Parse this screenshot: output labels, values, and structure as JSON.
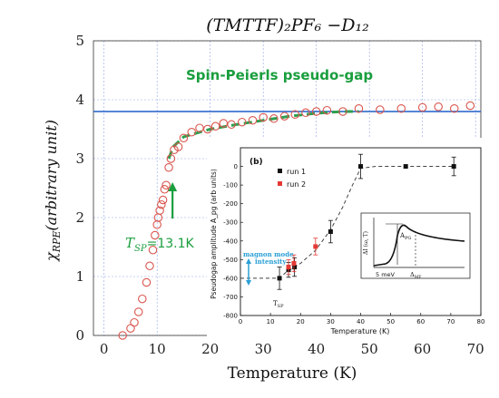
{
  "chart_data": [
    {
      "type": "scatter",
      "title": "(TMTTF)₂PF₆ −D₁₂",
      "xlabel": "Temperature (K)",
      "ylabel": "χRPE(arbitrary unit)",
      "ylabel_main": "χ",
      "ylabel_sub": "RPE",
      "ylabel_rest": "(arbitrary unit)",
      "xlim": [
        -2,
        71
      ],
      "ylim": [
        0,
        5
      ],
      "x_ticks": [
        0,
        10,
        20,
        30,
        40,
        50,
        60,
        70
      ],
      "y_ticks": [
        0,
        1,
        2,
        3,
        4,
        5
      ],
      "grid": true,
      "marker_color": "#d9544d",
      "points": [
        [
          3.5,
          0.0
        ],
        [
          5.0,
          0.12
        ],
        [
          5.7,
          0.22
        ],
        [
          6.5,
          0.4
        ],
        [
          7.2,
          0.62
        ],
        [
          8.0,
          0.9
        ],
        [
          8.6,
          1.18
        ],
        [
          9.2,
          1.45
        ],
        [
          9.6,
          1.7
        ],
        [
          10.0,
          1.88
        ],
        [
          10.2,
          2.0
        ],
        [
          10.5,
          2.12
        ],
        [
          10.8,
          2.22
        ],
        [
          11.1,
          2.3
        ],
        [
          11.4,
          2.48
        ],
        [
          11.7,
          2.55
        ],
        [
          12.2,
          2.85
        ],
        [
          12.6,
          3.0
        ],
        [
          13.2,
          3.15
        ],
        [
          14.0,
          3.2
        ],
        [
          15.0,
          3.35
        ],
        [
          16.5,
          3.45
        ],
        [
          18.0,
          3.52
        ],
        [
          19.5,
          3.5
        ],
        [
          21.0,
          3.55
        ],
        [
          22.5,
          3.6
        ],
        [
          24.0,
          3.58
        ],
        [
          26.0,
          3.62
        ],
        [
          28.0,
          3.65
        ],
        [
          30.0,
          3.7
        ],
        [
          32.0,
          3.68
        ],
        [
          34.0,
          3.72
        ],
        [
          36.0,
          3.75
        ],
        [
          38.0,
          3.78
        ],
        [
          40.0,
          3.8
        ],
        [
          42.0,
          3.82
        ],
        [
          45.0,
          3.8
        ],
        [
          48.0,
          3.85
        ],
        [
          52.0,
          3.83
        ],
        [
          56.0,
          3.85
        ],
        [
          60.0,
          3.87
        ],
        [
          63.0,
          3.88
        ],
        [
          66.0,
          3.85
        ],
        [
          69.0,
          3.9
        ]
      ],
      "hline": {
        "y": 3.8,
        "color": "#1f5fc9"
      },
      "dashed_fit": {
        "color": "#2e9e4f",
        "points": [
          [
            12.2,
            3.0
          ],
          [
            13,
            3.2
          ],
          [
            15,
            3.37
          ],
          [
            20,
            3.5
          ],
          [
            25,
            3.58
          ],
          [
            30,
            3.65
          ],
          [
            35,
            3.72
          ],
          [
            40,
            3.77
          ],
          [
            45,
            3.8
          ],
          [
            48,
            3.8
          ]
        ]
      },
      "annotations": {
        "pseudogap_label": "Spin-Peierls pseudo-gap",
        "tsp_symbol": "T",
        "tsp_sub": "SP",
        "tsp_value": "=13.1K",
        "annotation_color": "#1a9e3e",
        "arrow_at": [
          12.9,
          2.6
        ]
      }
    },
    {
      "type": "scatter",
      "panel_label": "(b)",
      "xlabel": "Temperature (K)",
      "ylabel": "Pseudogap amplitude A_pg (arb units)",
      "xlim": [
        0,
        80
      ],
      "ylim": [
        -800,
        100
      ],
      "x_ticks": [
        0,
        10,
        20,
        30,
        40,
        50,
        60,
        70,
        80
      ],
      "y_ticks": [
        0,
        -100,
        -200,
        -300,
        -400,
        -500,
        -600,
        -700,
        -800
      ],
      "legend": [
        "run 1",
        "run 2"
      ],
      "series": [
        {
          "name": "run 1",
          "color": "#111111",
          "points": [
            [
              13,
              -600
            ],
            [
              16,
              -555
            ],
            [
              18,
              -540
            ],
            [
              30,
              -350
            ],
            [
              40,
              0
            ],
            [
              55,
              0
            ],
            [
              71,
              0
            ]
          ],
          "errors": [
            60,
            40,
            50,
            60,
            65,
            0,
            50
          ]
        },
        {
          "name": "run 2",
          "color": "#e53935",
          "points": [
            [
              16,
              -540
            ],
            [
              17.8,
              -520
            ],
            [
              25,
              -430
            ]
          ],
          "errors": [
            40,
            45,
            45
          ]
        }
      ],
      "dashed_curve": [
        [
          0,
          -600
        ],
        [
          13,
          -600
        ],
        [
          15,
          -570
        ],
        [
          20,
          -520
        ],
        [
          25,
          -450
        ],
        [
          30,
          -340
        ],
        [
          34,
          -220
        ],
        [
          37,
          -110
        ],
        [
          40,
          -10
        ],
        [
          45,
          0
        ],
        [
          71,
          0
        ]
      ],
      "annotations": {
        "magnon_line1": "magnon mode",
        "magnon_line2": "intensity",
        "tsp_label": "T",
        "tsp_sub": "SP",
        "magnon_color": "#2a9fd6"
      },
      "inset": {
        "ylabel": "ΔI (ω, T)",
        "apg_label": "A",
        "apg_sub": "PG",
        "x_label_left": "5 meV",
        "x_label_right": "Δ",
        "x_label_right_sub": "MF"
      }
    }
  ]
}
